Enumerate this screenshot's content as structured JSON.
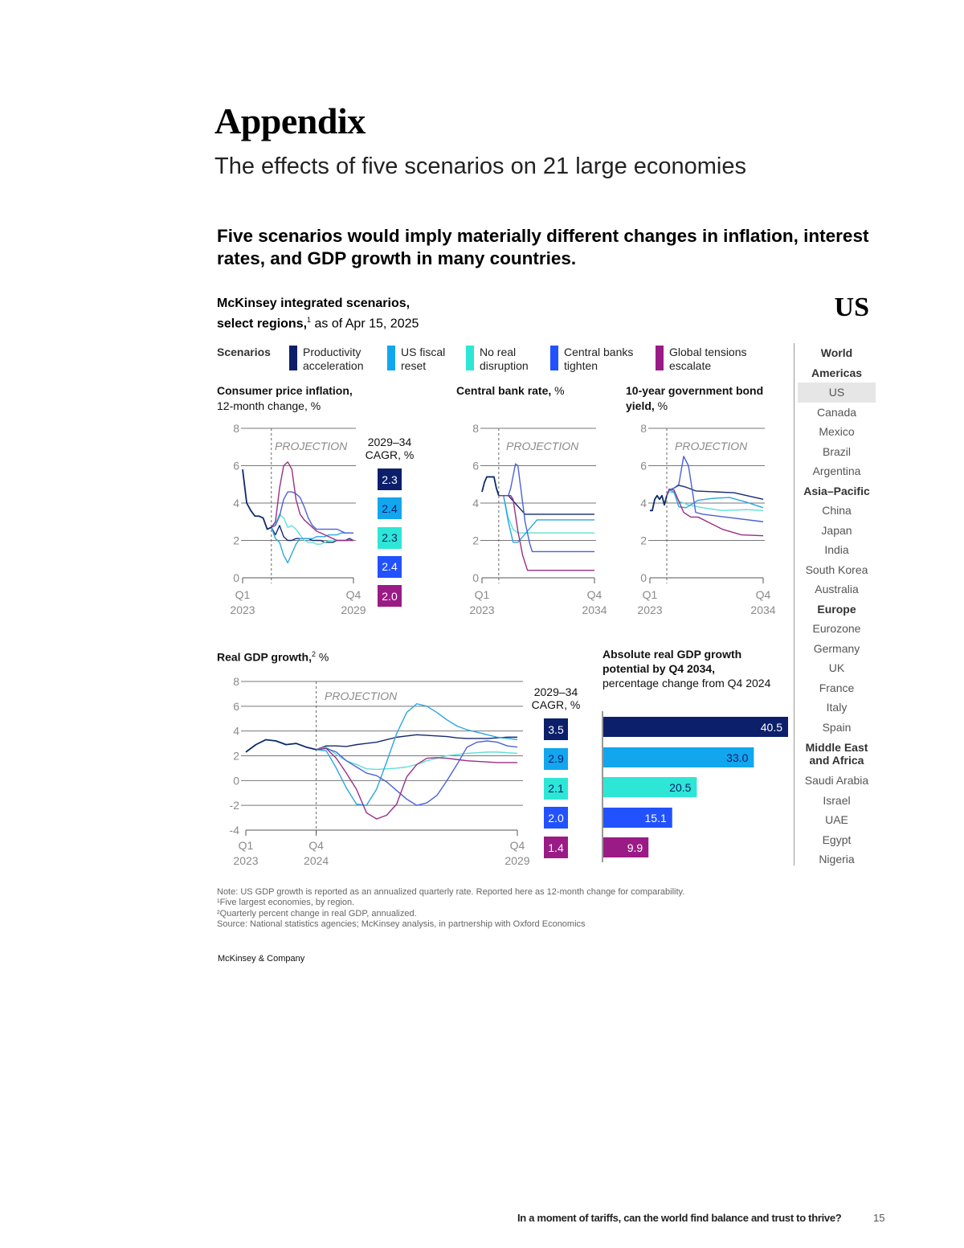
{
  "header": {
    "title": "Appendix",
    "subtitle": "The effects of five scenarios on 21 large economies"
  },
  "exhibit": {
    "headline": "Five scenarios would imply materially different changes in inflation, interest rates, and GDP growth in many countries.",
    "source_line1": "McKinsey integrated scenarios,",
    "source_line2": "select regions,",
    "source_footnote": "1",
    "source_asof": " as of Apr 15, 2025",
    "region": "US"
  },
  "legend": {
    "title": "Scenarios",
    "items": [
      {
        "line1": "Productivity",
        "line2": "acceleration",
        "color": "#0b1f6b"
      },
      {
        "line1": "US fiscal",
        "line2": "reset",
        "color": "#12a6ee"
      },
      {
        "line1": "No real",
        "line2": "disruption",
        "color": "#2ee6d6"
      },
      {
        "line1": "Central banks",
        "line2": "tighten",
        "color": "#2251ff"
      },
      {
        "line1": "Global tensions",
        "line2": "escalate",
        "color": "#9b1b86"
      }
    ]
  },
  "chart_data": [
    {
      "id": "cpi",
      "type": "line",
      "title": "Consumer price inflation,",
      "subtitle": "12-month change, %",
      "ylim": [
        0,
        8
      ],
      "yticks": [
        "0",
        "2",
        "4",
        "6",
        "8"
      ],
      "xticks": [
        {
          "q": "Q1",
          "y": "2023",
          "at": "Q1 2023"
        },
        {
          "q": "Q4",
          "y": "2029",
          "at": "Q4 2029"
        }
      ],
      "xrange": [
        "Q1 2023",
        "Q4 2029"
      ],
      "projection_start": "Q4 2024",
      "projection_label": "PROJECTION",
      "grid": true,
      "cagr_title1": "2029–34",
      "cagr_title2": "CAGR, %",
      "cagr": [
        "2.3",
        "2.4",
        "2.3",
        "2.4",
        "2.0"
      ],
      "history": {
        "start": "Q1 2023",
        "values": [
          5.8,
          4.0,
          3.6,
          3.3,
          3.3,
          3.2,
          2.6,
          2.7
        ]
      },
      "series": [
        {
          "scenario": 0,
          "start": "Q4 2024",
          "values": [
            2.7,
            2.3,
            2.8,
            2.2,
            2.0,
            2.0,
            2.1,
            2.1,
            2.1,
            2.1,
            2.0,
            2.0,
            2.0,
            1.9,
            1.9,
            1.9,
            2.0,
            2.0,
            2.0,
            2.1,
            2.0
          ]
        },
        {
          "scenario": 1,
          "start": "Q4 2024",
          "values": [
            2.7,
            2.1,
            1.9,
            1.2,
            0.8,
            1.3,
            1.8,
            2.1,
            2.1,
            2.1,
            2.1,
            2.2,
            2.2,
            2.2,
            2.3,
            2.3,
            2.3,
            2.4,
            2.4,
            2.4,
            2.4
          ]
        },
        {
          "scenario": 2,
          "start": "Q4 2024",
          "values": [
            2.7,
            2.9,
            3.4,
            3.2,
            2.7,
            2.8,
            2.6,
            2.3,
            2.0,
            1.9,
            1.9,
            1.8,
            1.8,
            1.9,
            2.0,
            2.0,
            2.0,
            2.0,
            2.0,
            2.0,
            2.0
          ]
        },
        {
          "scenario": 3,
          "start": "Q4 2024",
          "values": [
            2.7,
            2.8,
            3.3,
            4.2,
            4.6,
            4.6,
            4.5,
            4.3,
            3.8,
            3.2,
            2.8,
            2.6,
            2.6,
            2.6,
            2.6,
            2.6,
            2.6,
            2.5,
            2.4,
            2.4,
            2.4
          ]
        },
        {
          "scenario": 4,
          "start": "Q4 2024",
          "values": [
            2.7,
            3.0,
            4.8,
            6.0,
            6.2,
            5.8,
            4.2,
            3.4,
            3.1,
            2.9,
            2.7,
            2.5,
            2.4,
            2.3,
            2.2,
            2.1,
            2.0,
            2.0,
            2.0,
            2.0,
            2.0
          ]
        }
      ]
    },
    {
      "id": "cbr",
      "type": "line",
      "title": "Central bank rate,",
      "subtitle_inline": " %",
      "ylim": [
        0,
        8
      ],
      "yticks": [
        "0",
        "2",
        "4",
        "6",
        "8"
      ],
      "xticks": [
        {
          "q": "Q1",
          "y": "2023",
          "at": "Q1 2023"
        },
        {
          "q": "Q4",
          "y": "2034",
          "at": "Q4 2034"
        }
      ],
      "xrange": [
        "Q1 2023",
        "Q4 2034"
      ],
      "projection_start": "Q4 2024",
      "projection_label": "PROJECTION",
      "grid": true,
      "history": {
        "points": [
          [
            "Q1 2023",
            4.6
          ],
          [
            "Q2 2023",
            5.1
          ],
          [
            "Q3 2023",
            5.4
          ],
          [
            "Q4 2023",
            5.4
          ],
          [
            "Q1 2024",
            5.4
          ],
          [
            "Q2 2024",
            5.4
          ],
          [
            "Q3 2024",
            4.8
          ],
          [
            "Q4 2024",
            4.4
          ]
        ]
      },
      "series": [
        {
          "scenario": 0,
          "points": [
            [
              "Q4 2024",
              4.4
            ],
            [
              "Q4 2025",
              4.4
            ],
            [
              "Q3 2027",
              3.4
            ],
            [
              "Q4 2034",
              3.4
            ]
          ]
        },
        {
          "scenario": 1,
          "points": [
            [
              "Q4 2024",
              4.4
            ],
            [
              "Q2 2025",
              4.4
            ],
            [
              "Q4 2025",
              3.0
            ],
            [
              "Q2 2026",
              1.9
            ],
            [
              "Q4 2026",
              1.9
            ],
            [
              "Q4 2028",
              3.1
            ],
            [
              "Q4 2034",
              3.1
            ]
          ]
        },
        {
          "scenario": 2,
          "points": [
            [
              "Q4 2024",
              4.4
            ],
            [
              "Q2 2025",
              4.4
            ],
            [
              "Q4 2025",
              3.2
            ],
            [
              "Q2 2026",
              2.6
            ],
            [
              "Q4 2026",
              2.4
            ],
            [
              "Q4 2034",
              2.4
            ]
          ]
        },
        {
          "scenario": 3,
          "points": [
            [
              "Q4 2024",
              4.4
            ],
            [
              "Q4 2025",
              4.4
            ],
            [
              "Q1 2026",
              4.8
            ],
            [
              "Q3 2026",
              6.1
            ],
            [
              "Q4 2026",
              6.0
            ],
            [
              "Q1 2027",
              5.0
            ],
            [
              "Q3 2027",
              3.0
            ],
            [
              "Q1 2028",
              1.8
            ],
            [
              "Q2 2028",
              1.4
            ],
            [
              "Q4 2034",
              1.4
            ]
          ]
        },
        {
          "scenario": 4,
          "points": [
            [
              "Q4 2024",
              4.4
            ],
            [
              "Q1 2026",
              4.4
            ],
            [
              "Q2 2026",
              4.2
            ],
            [
              "Q4 2026",
              2.5
            ],
            [
              "Q2 2027",
              1.2
            ],
            [
              "Q4 2027",
              0.4
            ],
            [
              "Q4 2034",
              0.4
            ]
          ]
        }
      ]
    },
    {
      "id": "bond",
      "type": "line",
      "title": "10-year government bond",
      "title2": "yield,",
      "subtitle_inline": " %",
      "ylim": [
        0,
        8
      ],
      "yticks": [
        "0",
        "2",
        "4",
        "6",
        "8"
      ],
      "xticks": [
        {
          "q": "Q1",
          "y": "2023",
          "at": "Q1 2023"
        },
        {
          "q": "Q4",
          "y": "2034",
          "at": "Q4 2034"
        }
      ],
      "xrange": [
        "Q1 2023",
        "Q4 2034"
      ],
      "projection_start": "Q4 2024",
      "projection_label": "PROJECTION",
      "grid": true,
      "history": {
        "points": [
          [
            "Q1 2023",
            3.6
          ],
          [
            "Q2 2023",
            3.6
          ],
          [
            "Q3 2023",
            4.2
          ],
          [
            "Q4 2023",
            4.4
          ],
          [
            "Q1 2024",
            4.2
          ],
          [
            "Q2 2024",
            4.4
          ],
          [
            "Q3 2024",
            3.9
          ],
          [
            "Q4 2024",
            4.4
          ]
        ]
      },
      "series": [
        {
          "scenario": 0,
          "points": [
            [
              "Q4 2024",
              4.4
            ],
            [
              "Q1 2025",
              4.7
            ],
            [
              "Q3 2025",
              4.8
            ],
            [
              "Q1 2026",
              4.95
            ],
            [
              "Q4 2026",
              4.85
            ],
            [
              "Q4 2027",
              4.65
            ],
            [
              "Q4 2031",
              4.55
            ],
            [
              "Q4 2034",
              4.2
            ]
          ]
        },
        {
          "scenario": 1,
          "points": [
            [
              "Q4 2024",
              4.4
            ],
            [
              "Q1 2025",
              4.7
            ],
            [
              "Q3 2025",
              4.6
            ],
            [
              "Q1 2026",
              3.8
            ],
            [
              "Q4 2026",
              3.75
            ],
            [
              "Q1 2028",
              4.15
            ],
            [
              "Q3 2029",
              4.25
            ],
            [
              "Q2 2031",
              4.3
            ],
            [
              "Q1 2033",
              4.05
            ],
            [
              "Q4 2034",
              3.75
            ]
          ]
        },
        {
          "scenario": 2,
          "points": [
            [
              "Q4 2024",
              4.4
            ],
            [
              "Q1 2025",
              4.6
            ],
            [
              "Q3 2025",
              4.55
            ],
            [
              "Q1 2026",
              4.1
            ],
            [
              "Q1 2027",
              3.9
            ],
            [
              "Q3 2028",
              3.75
            ],
            [
              "Q3 2030",
              3.6
            ],
            [
              "Q1 2033",
              3.65
            ],
            [
              "Q4 2034",
              3.6
            ]
          ]
        },
        {
          "scenario": 3,
          "points": [
            [
              "Q4 2024",
              4.4
            ],
            [
              "Q1 2025",
              4.7
            ],
            [
              "Q3 2025",
              4.8
            ],
            [
              "Q1 2026",
              5.0
            ],
            [
              "Q3 2026",
              6.5
            ],
            [
              "Q1 2027",
              6.0
            ],
            [
              "Q4 2027",
              3.5
            ],
            [
              "Q3 2028",
              3.4
            ],
            [
              "Q4 2034",
              3.0
            ]
          ]
        },
        {
          "scenario": 4,
          "points": [
            [
              "Q4 2024",
              4.4
            ],
            [
              "Q1 2025",
              4.75
            ],
            [
              "Q3 2025",
              4.7
            ],
            [
              "Q3 2026",
              3.5
            ],
            [
              "Q2 2027",
              3.25
            ],
            [
              "Q1 2028",
              3.25
            ],
            [
              "Q3 2030",
              2.6
            ],
            [
              "Q3 2032",
              2.3
            ],
            [
              "Q4 2034",
              2.25
            ]
          ]
        }
      ]
    },
    {
      "id": "gdp",
      "type": "line",
      "title": "Real GDP growth,",
      "footnote": "2",
      "subtitle_inline": " %",
      "ylim": [
        -4,
        8
      ],
      "yticks": [
        "-4",
        "-2",
        "0",
        "2",
        "4",
        "6",
        "8"
      ],
      "xticks": [
        {
          "q": "Q1",
          "y": "2023",
          "at": "Q1 2023"
        },
        {
          "q": "Q4",
          "y": "2024",
          "at": "Q4 2024"
        },
        {
          "q": "Q4",
          "y": "2029",
          "at": "Q4 2029"
        }
      ],
      "xrange": [
        "Q1 2023",
        "Q4 2029"
      ],
      "projection_start": "Q4 2024",
      "projection_label": "PROJECTION",
      "grid": true,
      "cagr_title1": "2029–34",
      "cagr_title2": "CAGR, %",
      "cagr": [
        "3.5",
        "2.9",
        "2.1",
        "2.0",
        "1.4"
      ],
      "history": {
        "start": "Q1 2023",
        "values": [
          2.3,
          2.9,
          3.3,
          3.2,
          2.9,
          3.0,
          2.7,
          2.5
        ]
      },
      "series": [
        {
          "scenario": 0,
          "start": "Q4 2024",
          "values": [
            2.5,
            2.8,
            2.8,
            2.75,
            2.9,
            3.0,
            3.1,
            3.3,
            3.5,
            3.6,
            3.7,
            3.65,
            3.6,
            3.55,
            3.45,
            3.4,
            3.4,
            3.4,
            3.45,
            3.5,
            3.5
          ]
        },
        {
          "scenario": 1,
          "start": "Q4 2024",
          "values": [
            2.5,
            2.4,
            1.0,
            -0.6,
            -1.9,
            -2.0,
            -0.7,
            1.5,
            3.8,
            5.5,
            6.2,
            6.0,
            5.5,
            4.9,
            4.4,
            4.1,
            3.9,
            3.7,
            3.5,
            3.4,
            3.3
          ]
        },
        {
          "scenario": 2,
          "start": "Q4 2024",
          "values": [
            2.5,
            2.7,
            2.1,
            1.6,
            1.3,
            0.95,
            0.9,
            0.95,
            1.0,
            1.1,
            1.3,
            1.6,
            1.8,
            2.0,
            2.1,
            2.2,
            2.25,
            2.3,
            2.3,
            2.25,
            2.2
          ]
        },
        {
          "scenario": 3,
          "start": "Q4 2024",
          "values": [
            2.5,
            2.6,
            2.3,
            1.6,
            1.1,
            0.6,
            0.4,
            -0.1,
            -0.8,
            -1.5,
            -2.0,
            -1.8,
            -1.2,
            0.0,
            1.3,
            2.7,
            3.1,
            3.2,
            3.1,
            2.8,
            2.7
          ]
        },
        {
          "scenario": 4,
          "start": "Q4 2024",
          "values": [
            2.5,
            2.6,
            1.8,
            0.6,
            -0.7,
            -2.6,
            -3.1,
            -2.8,
            -1.9,
            0.3,
            1.3,
            1.8,
            1.85,
            1.8,
            1.7,
            1.6,
            1.55,
            1.5,
            1.45,
            1.45,
            1.45
          ]
        }
      ]
    },
    {
      "id": "abs-gdp",
      "type": "bar",
      "orientation": "horizontal",
      "title": "Absolute real GDP growth",
      "title2": "potential by Q4 2034,",
      "subtitle": "percentage change from Q4 2024",
      "xlim": [
        0,
        40.5
      ],
      "values": [
        40.5,
        33.0,
        20.5,
        15.1,
        9.9
      ],
      "labels": [
        "40.5",
        "33.0",
        "20.5",
        "15.1",
        "9.9"
      ]
    }
  ],
  "sidebar": {
    "items": [
      {
        "label": "World",
        "type": "header"
      },
      {
        "label": "Americas",
        "type": "header"
      },
      {
        "label": "US",
        "type": "selected"
      },
      {
        "label": "Canada"
      },
      {
        "label": "Mexico"
      },
      {
        "label": "Brazil"
      },
      {
        "label": "Argentina"
      },
      {
        "label": "Asia–Pacific",
        "type": "header"
      },
      {
        "label": "China"
      },
      {
        "label": "Japan"
      },
      {
        "label": "India"
      },
      {
        "label": "South Korea"
      },
      {
        "label": "Australia"
      },
      {
        "label": "Europe",
        "type": "header"
      },
      {
        "label": "Eurozone"
      },
      {
        "label": "Germany"
      },
      {
        "label": "UK"
      },
      {
        "label": "France"
      },
      {
        "label": "Italy"
      },
      {
        "label": "Spain"
      },
      {
        "label": "Middle East and Africa",
        "type": "header2"
      },
      {
        "label": "Saudi Arabia"
      },
      {
        "label": "Israel"
      },
      {
        "label": "UAE"
      },
      {
        "label": "Egypt"
      },
      {
        "label": "Nigeria"
      }
    ]
  },
  "notes": [
    " Note: US GDP growth is reported as an annualized quarterly rate. Reported here as 12-month change for comparability.",
    "¹Five largest economies, by region.",
    "²Quarterly percent change in real GDP, annualized.",
    " Source: National statistics agencies; McKinsey analysis, in partnership with Oxford Economics"
  ],
  "footer": {
    "brand": "McKinsey & Company",
    "running_title": "In a moment of tariffs, can the world find balance and trust to thrive?",
    "page": "15"
  }
}
